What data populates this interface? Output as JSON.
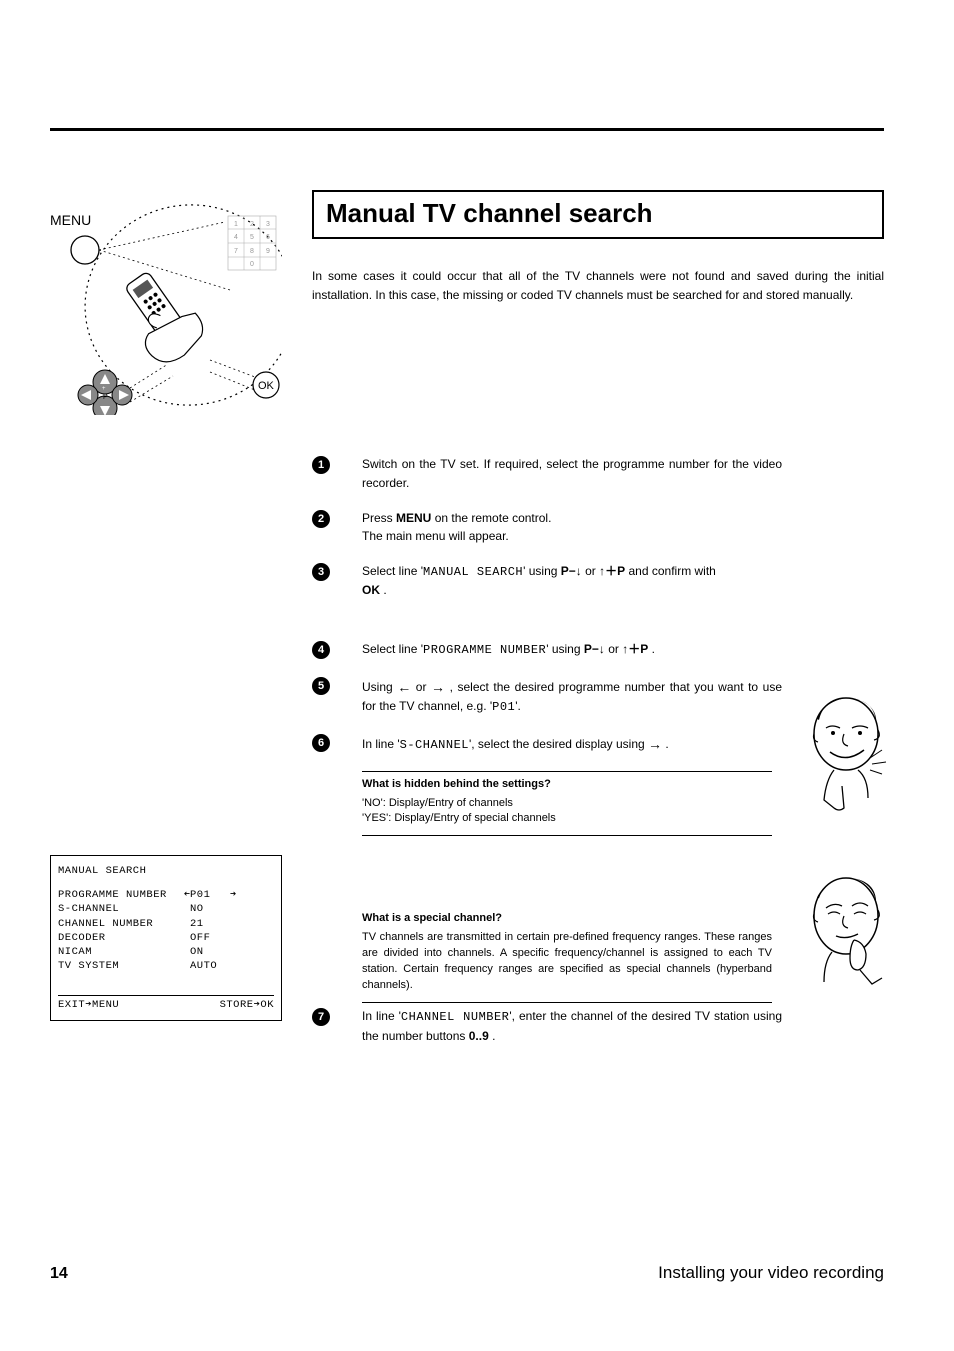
{
  "page_number": "14",
  "footer_text": "Installing your video recording",
  "section_title": "Manual TV channel search",
  "intro_text": "In some cases it could occur that all of the TV channels were not found and saved during the initial installation. In this case, the missing or coded TV channels must be searched for and stored manually.",
  "illustration": {
    "menu_label": "MENU",
    "ok_label": "OK",
    "keypad": [
      [
        "1",
        "2",
        "3"
      ],
      [
        "4",
        "5",
        "6"
      ],
      [
        "7",
        "8",
        "9"
      ],
      [
        "",
        "0",
        ""
      ]
    ]
  },
  "osd": {
    "title": "MANUAL SEARCH",
    "rows": [
      {
        "label": "PROGRAMME NUMBER",
        "value": "P01",
        "has_arrows": true
      },
      {
        "label": "S-CHANNEL",
        "value": "NO",
        "has_arrows": false
      },
      {
        "label": "CHANNEL NUMBER",
        "value": "21",
        "has_arrows": false
      },
      {
        "label": "DECODER",
        "value": "OFF",
        "has_arrows": false
      },
      {
        "label": "NICAM",
        "value": "ON",
        "has_arrows": false
      },
      {
        "label": "TV SYSTEM",
        "value": "AUTO",
        "has_arrows": false
      }
    ],
    "footer_left": "EXIT➔MENU",
    "footer_right": "STORE➔OK"
  },
  "steps": {
    "s1": "Switch on the TV set. If required, select the programme number for the video recorder.",
    "s2a": "Press ",
    "s2_menu": "MENU",
    "s2b": " on the remote control.",
    "s2c": "The main menu will appear.",
    "s3a": "Select line '",
    "s3_mono": "MANUAL SEARCH",
    "s3b": "' using ",
    "s3c": " or ",
    "s3d": " and confirm with ",
    "s3_ok": "OK",
    "s3e": " .",
    "s4a": "Select line '",
    "s4_mono": "PROGRAMME NUMBER",
    "s4b": "' using ",
    "s4c": " or ",
    "s4d": " .",
    "s5a": "Using ",
    "s5b": " or ",
    "s5c": " , select the desired programme number that you want to use for the TV channel, e.g. '",
    "s5_mono": "P01",
    "s5d": "'.",
    "s6a": "In line '",
    "s6_mono": "S-CHANNEL",
    "s6b": "', select the desired display using ",
    "s6c": " .",
    "s7a": "In line '",
    "s7_mono": "CHANNEL NUMBER",
    "s7b": "', enter the channel of the desired TV station using the number buttons ",
    "s7_kbd": "0..9",
    "s7c": " ."
  },
  "info1": {
    "title": "What is hidden behind the settings?",
    "line1a": "'",
    "line1_mono": "NO",
    "line1b": "': Display/Entry of channels",
    "line2a": "'",
    "line2_mono": "YES",
    "line2b": "': Display/Entry of special channels"
  },
  "info2": {
    "title": "What is a special channel?",
    "body": "TV channels are transmitted in certain pre-defined frequency ranges. These ranges are divided into channels. A specific frequency/channel is assigned to each TV station. Certain frequency ranges are specified as special channels (hyperband channels)."
  },
  "glyphs": {
    "p_minus_down": "P−↓",
    "up_plus_p": "↑＋P",
    "left_arrow": "←",
    "right_arrow": "→"
  },
  "colors": {
    "text": "#000000",
    "bg": "#ffffff"
  }
}
